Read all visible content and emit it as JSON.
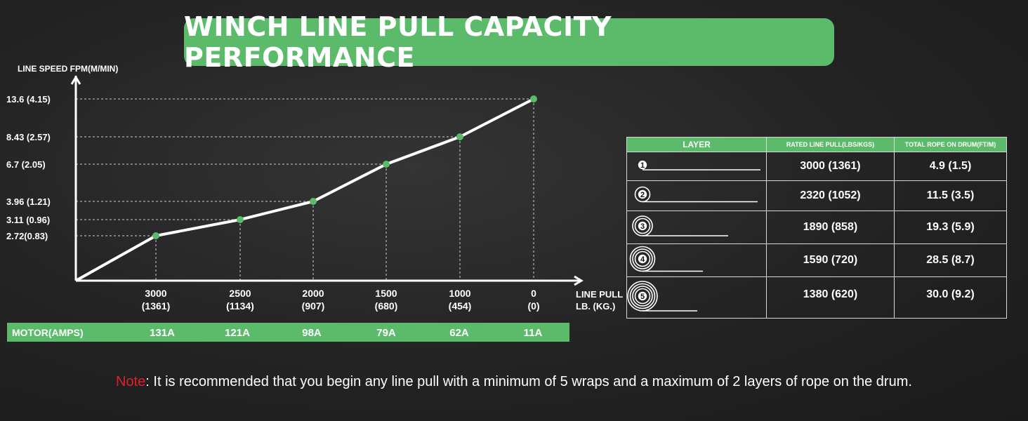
{
  "title": "WINCH LINE PULL CAPACITY PERFORMANCE",
  "chart_data": {
    "type": "line",
    "title": "WINCH LINE PULL CAPACITY PERFORMANCE",
    "ylabel": "LINE SPEED FPM(M/MIN)",
    "xlabel_line1": "LINE PULL",
    "xlabel_line2": "LB. (KG.)",
    "x_labels": [
      {
        "lb": "3000",
        "kg": "(1361)"
      },
      {
        "lb": "2500",
        "kg": "(1134)"
      },
      {
        "lb": "2000",
        "kg": "(907)"
      },
      {
        "lb": "1500",
        "kg": "(680)"
      },
      {
        "lb": "1000",
        "kg": "(454)"
      },
      {
        "lb": "0",
        "kg": "(0)"
      }
    ],
    "y_labels": [
      "13.6 (4.15)",
      "8.43 (2.57)",
      "6.7 (2.05)",
      "3.96 (1.21)",
      "3.11 (0.96)",
      "2.72(0.83)"
    ],
    "x": [
      3000,
      2500,
      2000,
      1500,
      1000,
      0
    ],
    "y": [
      2.72,
      3.11,
      3.96,
      6.7,
      8.43,
      13.6
    ],
    "xlim": [
      3500,
      0
    ],
    "ylim": [
      0,
      15
    ]
  },
  "motor": {
    "label": "MOTOR(AMPS)",
    "values": [
      "131A",
      "121A",
      "98A",
      "79A",
      "62A",
      "11A"
    ]
  },
  "layers_table": {
    "headers": [
      "LAYER",
      "RATED LINE PULL(LBS/KGS)",
      "TOTAL ROPE ON DRUM(FT/M)"
    ],
    "rows": [
      {
        "layer": "1",
        "pull": "3000 (1361)",
        "rope": "4.9 (1.5)"
      },
      {
        "layer": "2",
        "pull": "2320 (1052)",
        "rope": "11.5 (3.5)"
      },
      {
        "layer": "3",
        "pull": "1890 (858)",
        "rope": "19.3 (5.9)"
      },
      {
        "layer": "4",
        "pull": "1590 (720)",
        "rope": "28.5 (8.7)"
      },
      {
        "layer": "5",
        "pull": "1380 (620)",
        "rope": "30.0 (9.2)"
      }
    ]
  },
  "note": {
    "key": "Note",
    "text": ": It is recommended that you begin any line pull with a minimum of 5 wraps and a maximum of 2 layers of rope on the drum."
  },
  "colors": {
    "accent": "#5cbb6b",
    "point": "#5cbb6b",
    "note_key": "#e0202a",
    "line": "#ffffff"
  }
}
